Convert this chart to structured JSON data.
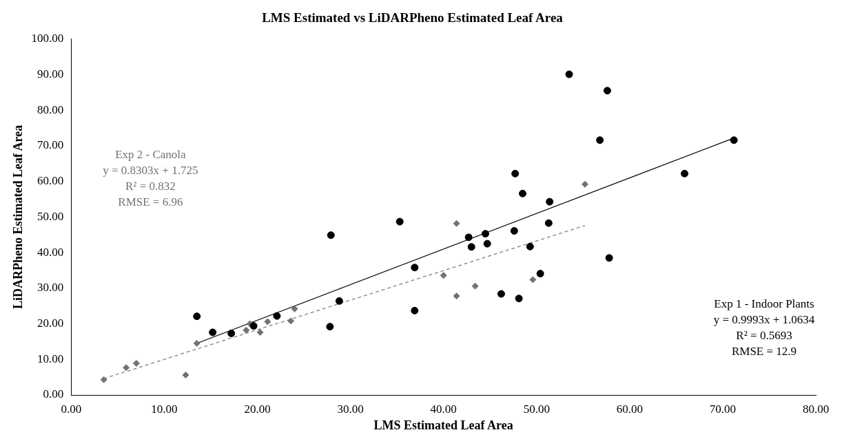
{
  "chart_data": {
    "type": "scatter",
    "title": "LMS Estimated vs LiDARPheno Estimated Leaf Area",
    "xlabel": "LMS Estimated Leaf Area",
    "ylabel": "LiDARPheno Estimated Leaf Area",
    "xlim": [
      0,
      80
    ],
    "ylim": [
      0,
      100
    ],
    "xticks": [
      {
        "value": 0,
        "label": "0.00"
      },
      {
        "value": 10,
        "label": "10.00"
      },
      {
        "value": 20,
        "label": "20.00"
      },
      {
        "value": 30,
        "label": "30.00"
      },
      {
        "value": 40,
        "label": "40.00"
      },
      {
        "value": 50,
        "label": "50.00"
      },
      {
        "value": 60,
        "label": "60.00"
      },
      {
        "value": 70,
        "label": "70.00"
      },
      {
        "value": 80,
        "label": "80.00"
      }
    ],
    "yticks": [
      {
        "value": 0,
        "label": "0.00"
      },
      {
        "value": 10,
        "label": "10.00"
      },
      {
        "value": 20,
        "label": "20.00"
      },
      {
        "value": 30,
        "label": "30.00"
      },
      {
        "value": 40,
        "label": "40.00"
      },
      {
        "value": 50,
        "label": "50.00"
      },
      {
        "value": 60,
        "label": "60.00"
      },
      {
        "value": 70,
        "label": "70.00"
      },
      {
        "value": 80,
        "label": "80.00"
      },
      {
        "value": 90,
        "label": "90.00"
      },
      {
        "value": 100,
        "label": "100.00"
      }
    ],
    "grid": false,
    "legend": false,
    "annotations": [
      "Exp 1 - Indoor Plants\ny = 0.9993x + 1.0634\nR² = 0.5693\nRMSE = 12.9",
      "Exp 2 - Canola\ny = 0.8303x + 1.725\nR² = 0.832\nRMSE = 6.96"
    ],
    "series": [
      {
        "type": "scatter",
        "color": "#000000",
        "marker": "circle",
        "x": [
          13.5,
          15.2,
          17.2,
          19.6,
          22.1,
          27.8,
          27.9,
          28.8,
          35.3,
          36.9,
          36.9,
          42.7,
          43.0,
          44.5,
          44.7,
          46.2,
          47.6,
          47.7,
          48.1,
          48.5,
          49.3,
          50.4,
          51.3,
          51.4,
          53.5,
          56.8,
          57.6,
          57.8,
          65.9,
          71.2
        ],
        "values": [
          22.1,
          17.6,
          17.3,
          19.4,
          22.2,
          19.2,
          44.9,
          26.4,
          48.7,
          35.8,
          23.7,
          44.3,
          41.6,
          45.3,
          42.5,
          28.4,
          46.1,
          62.2,
          27.1,
          56.6,
          41.7,
          34.1,
          48.3,
          54.3,
          90.1,
          71.6,
          85.5,
          38.5,
          62.2,
          71.6
        ]
      },
      {
        "type": "scatter",
        "color": "#767171",
        "marker": "diamond",
        "x": [
          3.5,
          5.9,
          7.0,
          12.3,
          13.5,
          18.8,
          19.2,
          20.3,
          21.1,
          23.6,
          24.0,
          40.0,
          41.4,
          41.4,
          43.4,
          49.6,
          55.2
        ],
        "values": [
          4.3,
          7.7,
          8.9,
          5.6,
          14.5,
          18.2,
          20.0,
          17.6,
          20.6,
          20.8,
          24.2,
          33.6,
          48.2,
          27.8,
          30.6,
          32.4,
          59.2
        ]
      },
      {
        "type": "line",
        "color": "#000000",
        "marker": "none",
        "line_style": "solid",
        "x": [
          13.5,
          71.2
        ],
        "values": [
          14.5,
          72.2
        ]
      },
      {
        "type": "line",
        "color": "#808080",
        "marker": "none",
        "line_style": "dashed",
        "x": [
          3.5,
          55.2
        ],
        "values": [
          4.6,
          47.6
        ]
      }
    ]
  }
}
